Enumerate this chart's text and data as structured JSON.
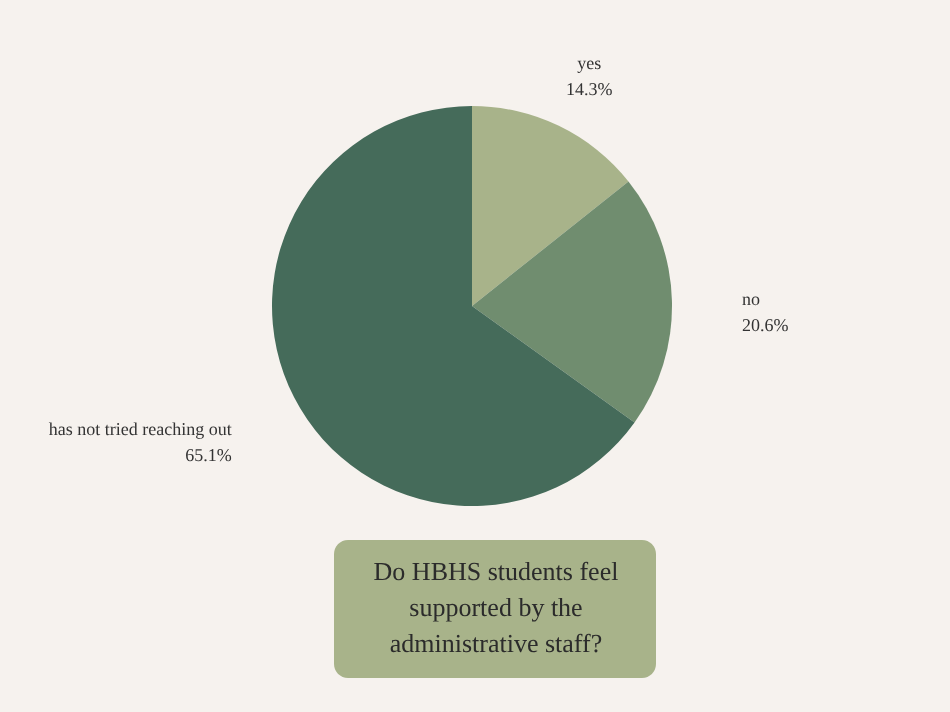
{
  "chart_data": {
    "type": "pie",
    "title": "Do HBHS students feel supported by the administrative staff?",
    "categories": [
      "yes",
      "no",
      "has not tried reaching out"
    ],
    "values": [
      14.3,
      20.6,
      65.1
    ],
    "value_labels": [
      "14.3%",
      "20.6%",
      "65.1%"
    ],
    "colors": [
      "#a8b38a",
      "#708d6f",
      "#456b5a"
    ]
  }
}
